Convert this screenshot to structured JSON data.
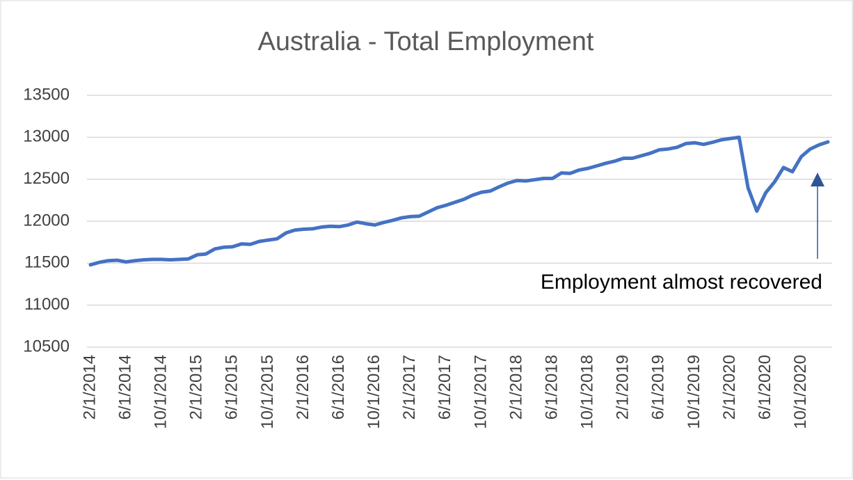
{
  "chart_data": {
    "type": "line",
    "title": "Australia - Total Employment",
    "categories": [
      "2/1/2014",
      null,
      null,
      null,
      "6/1/2014",
      null,
      null,
      null,
      "10/1/2014",
      null,
      null,
      null,
      "2/1/2015",
      null,
      null,
      null,
      "6/1/2015",
      null,
      null,
      null,
      "10/1/2015",
      null,
      null,
      null,
      "2/1/2016",
      null,
      null,
      null,
      "6/1/2016",
      null,
      null,
      null,
      "10/1/2016",
      null,
      null,
      null,
      "2/1/2017",
      null,
      null,
      null,
      "6/1/2017",
      null,
      null,
      null,
      "10/1/2017",
      null,
      null,
      null,
      "2/1/2018",
      null,
      null,
      null,
      "6/1/2018",
      null,
      null,
      null,
      "10/1/2018",
      null,
      null,
      null,
      "2/1/2019",
      null,
      null,
      null,
      "6/1/2019",
      null,
      null,
      null,
      "10/1/2019",
      null,
      null,
      null,
      "2/1/2020",
      null,
      null,
      null,
      "6/1/2020",
      null,
      null,
      null,
      "10/1/2020",
      null,
      null,
      null
    ],
    "values": [
      11480,
      11510,
      11530,
      11535,
      11515,
      11530,
      11540,
      11545,
      11545,
      11540,
      11545,
      11550,
      11600,
      11610,
      11670,
      11690,
      11695,
      11730,
      11725,
      11760,
      11775,
      11790,
      11860,
      11895,
      11905,
      11910,
      11930,
      11940,
      11935,
      11955,
      11990,
      11970,
      11955,
      11985,
      12010,
      12040,
      12055,
      12060,
      12110,
      12160,
      12190,
      12225,
      12260,
      12310,
      12345,
      12360,
      12410,
      12455,
      12485,
      12480,
      12495,
      12510,
      12510,
      12575,
      12570,
      12610,
      12630,
      12660,
      12690,
      12715,
      12750,
      12750,
      12780,
      12810,
      12850,
      12860,
      12880,
      12925,
      12935,
      12915,
      12940,
      12970,
      12985,
      13000,
      12400,
      12120,
      12340,
      12470,
      12640,
      12590,
      12770,
      12860,
      12910,
      12945
    ],
    "color": "#4472c4",
    "ylim": [
      10500,
      13500
    ],
    "yticks": [
      10500,
      11000,
      11500,
      12000,
      12500,
      13000,
      13500
    ],
    "grid": true,
    "annotation": "Employment almost recovered"
  }
}
